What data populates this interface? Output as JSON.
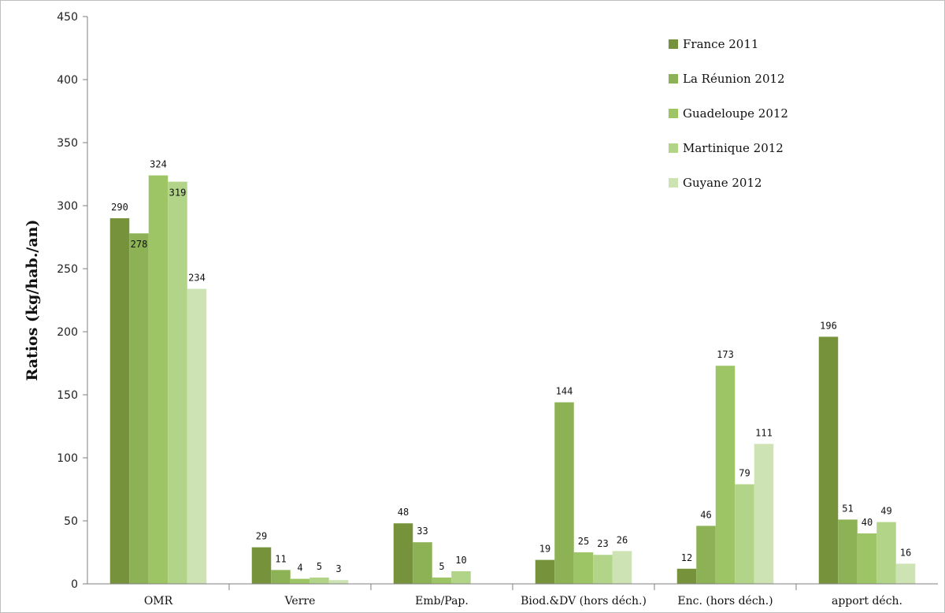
{
  "chart_data": {
    "type": "bar",
    "title": "",
    "xlabel": "",
    "ylabel": "Ratios (kg/hab./an)",
    "ylim": [
      0,
      450
    ],
    "yticks": [
      0,
      50,
      100,
      150,
      200,
      250,
      300,
      350,
      400,
      450
    ],
    "grid": false,
    "legend_position": "top-right",
    "categories": [
      "OMR",
      "Verre",
      "Emb/Pap.",
      "Biod.&DV (hors déch.)",
      "Enc. (hors déch.)",
      "apport déch."
    ],
    "series": [
      {
        "name": "France 2011",
        "color": "#76933c",
        "values": [
          290,
          29,
          48,
          19,
          12,
          196
        ]
      },
      {
        "name": "La Réunion 2012",
        "color": "#8db256",
        "values": [
          278,
          11,
          33,
          144,
          46,
          51
        ]
      },
      {
        "name": "Guadeloupe 2012",
        "color": "#9dc565",
        "values": [
          324,
          4,
          5,
          25,
          173,
          40
        ]
      },
      {
        "name": "Martinique 2012",
        "color": "#b2d488",
        "values": [
          319,
          5,
          10,
          23,
          79,
          49
        ]
      },
      {
        "name": "Guyane 2012",
        "color": "#cde3b4",
        "values": [
          234,
          3,
          null,
          26,
          111,
          16
        ]
      }
    ]
  }
}
